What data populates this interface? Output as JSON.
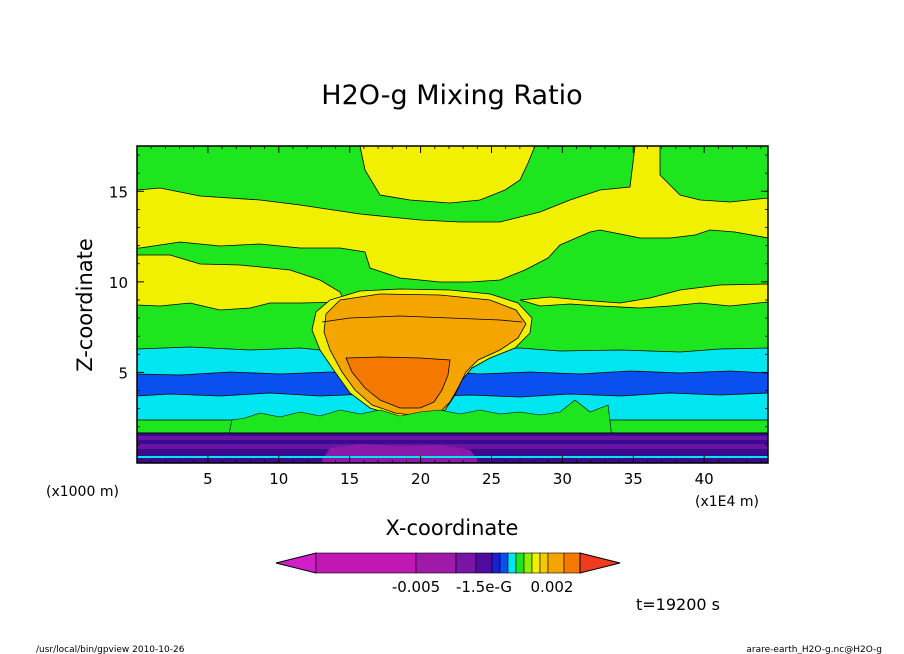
{
  "chart_data": {
    "type": "heatmap",
    "title": "H2O-g Mixing Ratio",
    "xlabel": "X-coordinate",
    "ylabel": "Z-coordinate",
    "x_ticks": [
      "5",
      "10",
      "15",
      "20",
      "25",
      "30",
      "35",
      "40"
    ],
    "y_ticks": [
      "5",
      "10",
      "15"
    ],
    "x_tick_values": [
      5,
      10,
      15,
      20,
      25,
      30,
      35,
      40
    ],
    "y_tick_values": [
      5,
      10,
      15
    ],
    "xlim": [
      0,
      44.5
    ],
    "ylim": [
      0,
      17.5
    ],
    "x_unit": "(x1E4 m)",
    "y_unit": "(x1000 m)",
    "colorbar_labels": [
      "-0.005",
      "-1.5e-G",
      "0.002"
    ],
    "colorbar_colors": [
      "#d21ec8",
      "#c018b4",
      "#a01aaa",
      "#7814a6",
      "#500aa0",
      "#1e1ecf",
      "#0a50f0",
      "#00e6f0",
      "#1ee61e",
      "#8cee00",
      "#f0f000",
      "#f5c800",
      "#f5a500",
      "#f57800",
      "#f03c1e"
    ],
    "time_label": "t=19200 s",
    "footer_left": "/usr/local/bin/gpview  2010-10-26",
    "footer_right": "arare-earth_H2O-g.nc@H2O-g"
  },
  "colors": {
    "green": "#1ee61e",
    "yellow": "#f0f000",
    "cyan": "#00e6f0",
    "blue": "#0a50f0",
    "lightorange": "#f5c800",
    "orange": "#f5a500",
    "darkorange": "#f57800",
    "purple": "#6a14a6",
    "darkpurple": "#3c0a8c",
    "magenta": "#8a1aaa"
  }
}
